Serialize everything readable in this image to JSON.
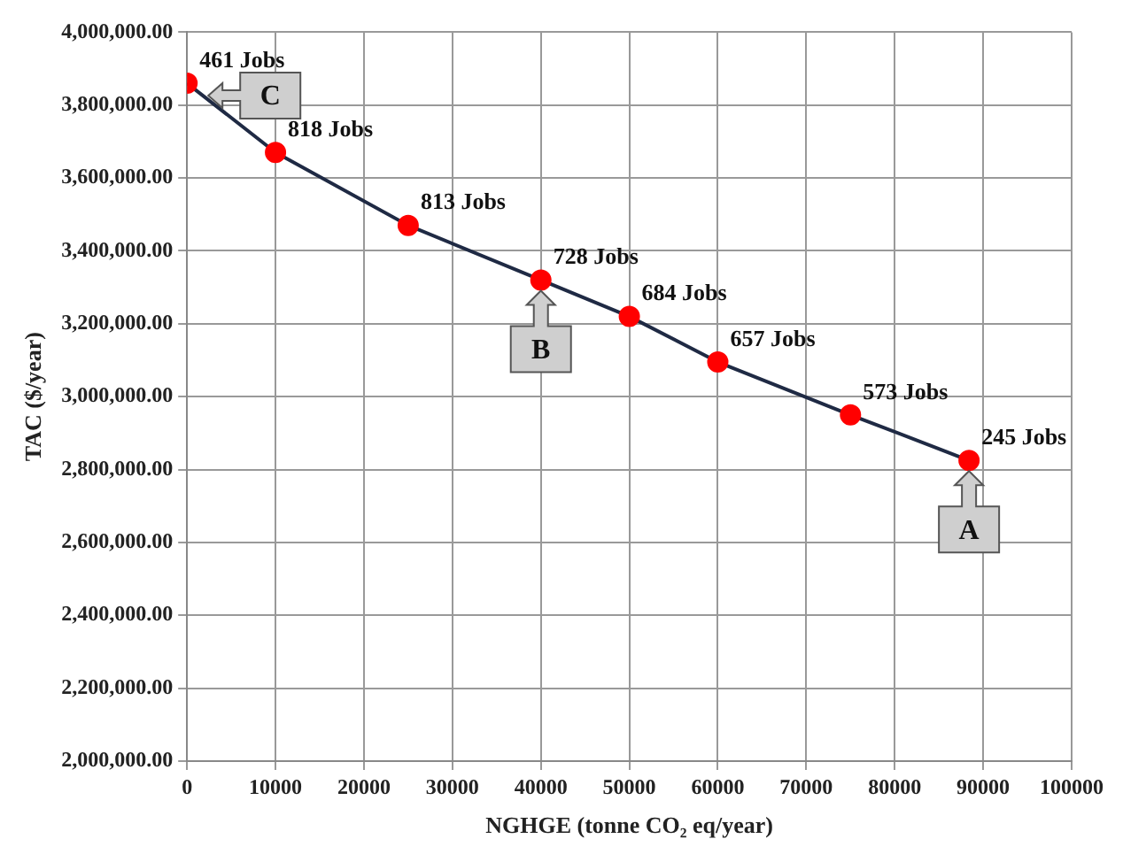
{
  "chart_data": {
    "type": "line",
    "xlabel": "NGHGE (tonne CO₂ eq/year)",
    "ylabel": "TAC ($/year)",
    "series": [
      {
        "color": "#1f2a44",
        "x": [
          0,
          10000,
          25000,
          40000,
          50000,
          60000,
          75000,
          88400
        ],
        "values": [
          3860000,
          3670000,
          3470000,
          3320000,
          3220000,
          3095000,
          2950000,
          2825000
        ]
      }
    ],
    "marker": "circle",
    "line_style": "solid",
    "grid": true,
    "legend": false,
    "xlim": [
      0,
      100000
    ],
    "xticks": [
      0,
      10000,
      20000,
      30000,
      40000,
      50000,
      60000,
      70000,
      80000,
      90000,
      100000
    ],
    "ylim": [
      2000000,
      4000000
    ],
    "yticks": [
      {
        "value": 2000000,
        "label": "2,000,000.00"
      },
      {
        "value": 2200000,
        "label": "2,200,000.00"
      },
      {
        "value": 2400000,
        "label": "2,400,000.00"
      },
      {
        "value": 2600000,
        "label": "2,600,000.00"
      },
      {
        "value": 2800000,
        "label": "2,800,000.00"
      },
      {
        "value": 3000000,
        "label": "3,000,000.00"
      },
      {
        "value": 3200000,
        "label": "3,200,000.00"
      },
      {
        "value": 3400000,
        "label": "3,400,000.00"
      },
      {
        "value": 3600000,
        "label": "3,600,000.00"
      },
      {
        "value": 3800000,
        "label": "3,800,000.00"
      },
      {
        "value": 4000000,
        "label": "4,000,000.00"
      }
    ],
    "annotations": [
      {
        "text": "461 Jobs",
        "x": 0,
        "y": 3860000
      },
      {
        "text": "818 Jobs",
        "x": 10000,
        "y": 3670000
      },
      {
        "text": "813 Jobs",
        "x": 25000,
        "y": 3470000
      },
      {
        "text": "728 Jobs",
        "x": 40000,
        "y": 3320000
      },
      {
        "text": "684 Jobs",
        "x": 50000,
        "y": 3220000
      },
      {
        "text": "657 Jobs",
        "x": 60000,
        "y": 3095000
      },
      {
        "text": "573 Jobs",
        "x": 75000,
        "y": 2950000
      },
      {
        "text": "245 Jobs",
        "x": 88400,
        "y": 2825000
      },
      {
        "text": "A",
        "x": 88400,
        "y": 2825000
      },
      {
        "text": "B",
        "x": 40000,
        "y": 3320000
      },
      {
        "text": "C",
        "x": 0,
        "y": 3860000
      }
    ]
  }
}
